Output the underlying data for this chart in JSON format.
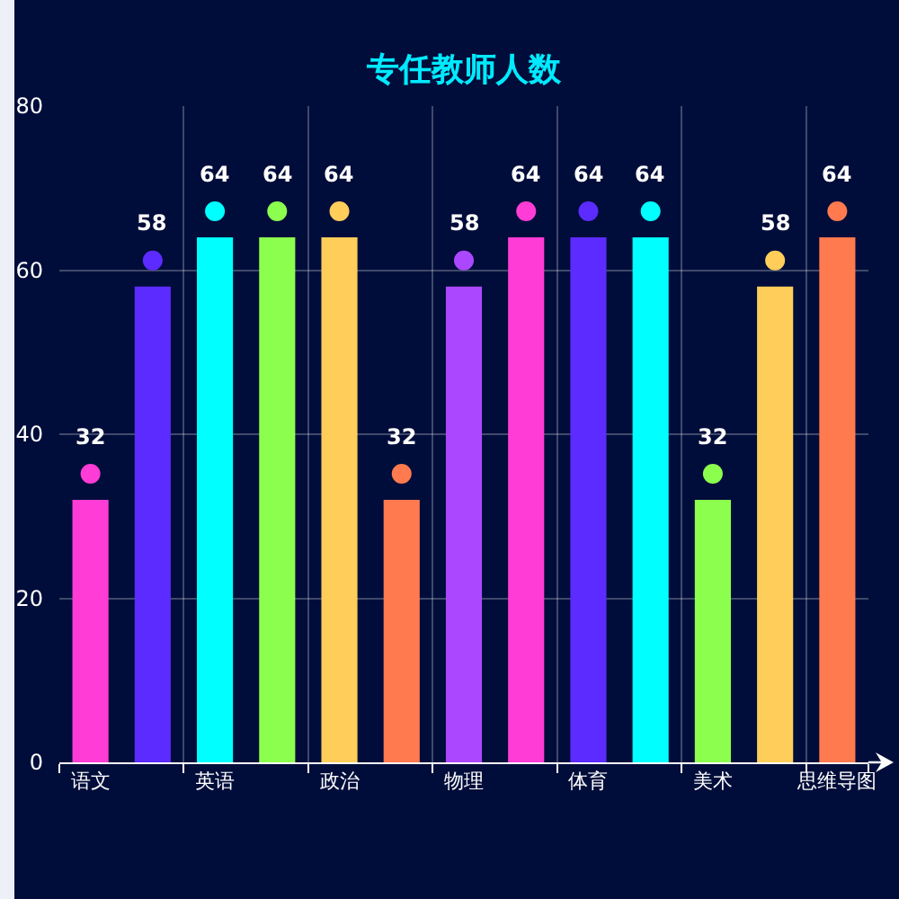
{
  "chart_data": {
    "type": "bar",
    "title": "专任教师人数",
    "categories": [
      "语文",
      null,
      "英语",
      null,
      "政治",
      null,
      "物理",
      null,
      "体育",
      null,
      "美术",
      null,
      "思维导图"
    ],
    "values": [
      32,
      58,
      64,
      64,
      64,
      32,
      58,
      64,
      64,
      64,
      32,
      58,
      64
    ],
    "colors": [
      "#ff3cd6",
      "#5c2bff",
      "#00ffff",
      "#8cff4e",
      "#ffcd5a",
      "#ff7a4f",
      "#ab48ff",
      "#ff3cd6",
      "#5c2bff",
      "#00ffff",
      "#8cff4e",
      "#ffcd5a",
      "#ff7a4f"
    ],
    "ylim": [
      0,
      80
    ],
    "yticks": [
      0,
      20,
      40,
      60,
      80
    ],
    "grid": true,
    "data_labels": true,
    "marker": "circle"
  }
}
